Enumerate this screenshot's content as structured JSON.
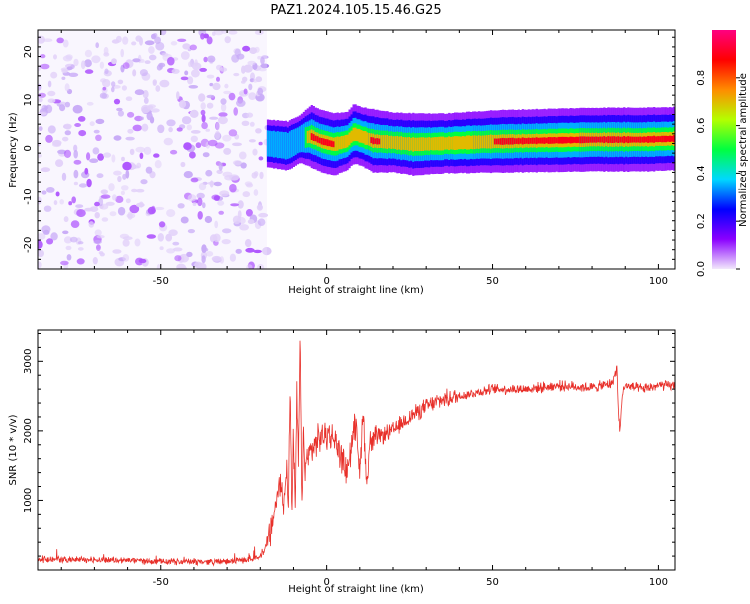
{
  "title": "PAZ1.2024.105.15.46.G25",
  "chart_data": [
    {
      "type": "heatmap",
      "xlabel": "Height of straight line (km)",
      "ylabel": "Frequency (Hz)",
      "xlim": [
        -87,
        105
      ],
      "ylim": [
        -25,
        24.5
      ],
      "xticks": [
        -50,
        0,
        50,
        100
      ],
      "yticks": [
        -20,
        -10,
        0,
        10,
        20
      ],
      "colorbar": {
        "label": "Normalized spectral amplitude",
        "range": [
          0,
          1
        ],
        "ticks": [
          0.0,
          0.2,
          0.4,
          0.6,
          0.8
        ],
        "colormap": [
          "#f2e8fb",
          "#8a00ff",
          "#0000ff",
          "#00d8ff",
          "#00ff40",
          "#b4ff00",
          "#ff8c00",
          "#ff0000",
          "#ff0080"
        ]
      },
      "regions": [
        {
          "name": "noise",
          "x": [
            -87,
            -18
          ],
          "y": [
            -25,
            24.5
          ],
          "amplitude_max": 0.1
        },
        {
          "name": "signal",
          "x": [
            -18,
            105
          ],
          "center_freq_hz": 1.8,
          "amplitude_max": 0.95
        }
      ],
      "ridge": [
        {
          "x": -18,
          "f": 1.0,
          "amp": 0.3
        },
        {
          "x": -12,
          "f": 0.5,
          "amp": 0.35
        },
        {
          "x": -8,
          "f": 2.0,
          "amp": 0.3
        },
        {
          "x": -5,
          "f": 2.5,
          "amp": 0.85
        },
        {
          "x": -2,
          "f": 1.5,
          "amp": 0.85
        },
        {
          "x": 2,
          "f": 0.8,
          "amp": 0.85
        },
        {
          "x": 6,
          "f": 1.5,
          "amp": 0.7
        },
        {
          "x": 8,
          "f": 3.0,
          "amp": 0.75
        },
        {
          "x": 10,
          "f": 2.5,
          "amp": 0.7
        },
        {
          "x": 14,
          "f": 1.5,
          "amp": 0.9
        },
        {
          "x": 20,
          "f": 1.2,
          "amp": 0.75
        },
        {
          "x": 26,
          "f": 0.8,
          "amp": 0.85
        },
        {
          "x": 35,
          "f": 1.0,
          "amp": 0.75
        },
        {
          "x": 50,
          "f": 1.4,
          "amp": 0.85
        },
        {
          "x": 65,
          "f": 1.6,
          "amp": 0.88
        },
        {
          "x": 80,
          "f": 1.8,
          "amp": 0.9
        },
        {
          "x": 95,
          "f": 1.8,
          "amp": 0.92
        },
        {
          "x": 105,
          "f": 2.0,
          "amp": 0.88
        }
      ]
    },
    {
      "type": "line",
      "xlabel": "Height of straight line (km)",
      "ylabel": "SNR (10 * v/v)",
      "xlim": [
        -87,
        105
      ],
      "ylim": [
        0,
        3450
      ],
      "xticks": [
        -50,
        0,
        50,
        100
      ],
      "yticks": [
        1000,
        2000,
        3000
      ],
      "color": "#e8302a",
      "series": [
        {
          "x": [
            -87,
            -70,
            -60,
            -50,
            -40,
            -30,
            -22,
            -19,
            -17,
            -16,
            -15,
            -14,
            -13,
            -12,
            -11.5,
            -11,
            -10.5,
            -10,
            -9.5,
            -9,
            -8.5,
            -8,
            -7.5,
            -7,
            -6.5,
            -6,
            -5,
            -4,
            -3,
            -2,
            0,
            2,
            4,
            6,
            8,
            9,
            10,
            11,
            12,
            13,
            15,
            20,
            25,
            30,
            35,
            40,
            50,
            60,
            70,
            80,
            86,
            87.5,
            88,
            88.5,
            89,
            90,
            95,
            100,
            105
          ],
          "y": [
            150,
            150,
            140,
            120,
            120,
            120,
            160,
            250,
            500,
            800,
            1000,
            1300,
            900,
            1500,
            1000,
            2700,
            700,
            2000,
            800,
            2500,
            1500,
            3400,
            1000,
            1900,
            1400,
            1600,
            1700,
            1750,
            1850,
            1900,
            1950,
            1900,
            1700,
            1400,
            1900,
            2200,
            1300,
            2400,
            1200,
            1800,
            1900,
            2000,
            2200,
            2350,
            2450,
            2500,
            2600,
            2600,
            2650,
            2620,
            2680,
            2900,
            2200,
            2000,
            2500,
            2650,
            2600,
            2650,
            2650
          ]
        }
      ]
    }
  ]
}
